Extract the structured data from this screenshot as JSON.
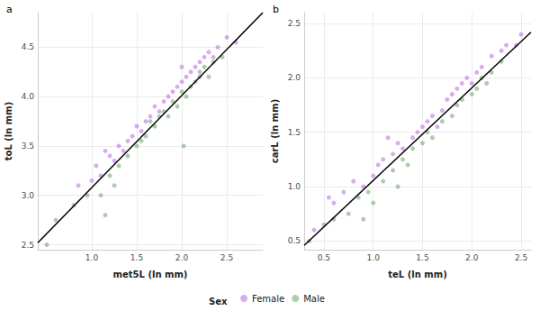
{
  "chart_data": [
    {
      "type": "scatter",
      "title": "a",
      "x_label": "met5L (ln mm)",
      "y_label": "toL (ln mm)",
      "xlim": [
        0.4,
        2.9
      ],
      "ylim": [
        2.45,
        4.85
      ],
      "xticks": [
        {
          "value": 1,
          "label": "1.0"
        },
        1.5,
        {
          "value": 2,
          "label": "2.0"
        },
        2.5
      ],
      "yticks": [
        2.5,
        {
          "value": 3,
          "label": "3.0"
        },
        3.5,
        {
          "value": 4,
          "label": "4.0"
        },
        4.5
      ],
      "grid": true,
      "legend": "bottom",
      "legend_title": "Sex",
      "series": [
        {
          "name": "Female",
          "color": "#b45ae0",
          "marker": "circle",
          "values": [
            [
              1.0,
              3.15
            ],
            [
              1.05,
              3.3
            ],
            [
              1.1,
              3.2
            ],
            [
              1.2,
              3.4
            ],
            [
              1.25,
              3.35
            ],
            [
              1.3,
              3.5
            ],
            [
              1.35,
              3.45
            ],
            [
              1.4,
              3.55
            ],
            [
              1.45,
              3.6
            ],
            [
              1.5,
              3.7
            ],
            [
              1.55,
              3.65
            ],
            [
              1.6,
              3.75
            ],
            [
              1.65,
              3.8
            ],
            [
              1.7,
              3.9
            ],
            [
              1.75,
              3.85
            ],
            [
              1.8,
              3.95
            ],
            [
              1.85,
              4.0
            ],
            [
              1.9,
              4.05
            ],
            [
              1.95,
              4.1
            ],
            [
              2.0,
              4.15
            ],
            [
              2.05,
              4.2
            ],
            [
              2.1,
              4.25
            ],
            [
              2.15,
              4.3
            ],
            [
              2.2,
              4.35
            ],
            [
              2.25,
              4.4
            ],
            [
              2.3,
              4.45
            ],
            [
              2.35,
              4.4
            ],
            [
              2.4,
              4.5
            ],
            [
              2.5,
              4.6
            ],
            [
              2.6,
              4.55
            ],
            [
              0.85,
              3.1
            ],
            [
              1.15,
              3.45
            ],
            [
              2.0,
              4.3
            ],
            [
              2.2,
              4.2
            ]
          ]
        },
        {
          "name": "Male",
          "color": "#5a9e5a",
          "marker": "circle",
          "values": [
            [
              0.5,
              2.5
            ],
            [
              0.6,
              2.75
            ],
            [
              0.8,
              2.9
            ],
            [
              0.95,
              3.0
            ],
            [
              1.1,
              3.0
            ],
            [
              1.15,
              2.8
            ],
            [
              1.2,
              3.2
            ],
            [
              1.3,
              3.3
            ],
            [
              1.4,
              3.4
            ],
            [
              1.5,
              3.5
            ],
            [
              1.55,
              3.55
            ],
            [
              1.6,
              3.6
            ],
            [
              1.7,
              3.7
            ],
            [
              1.75,
              3.8
            ],
            [
              1.8,
              3.85
            ],
            [
              1.9,
              3.95
            ],
            [
              1.95,
              3.9
            ],
            [
              2.0,
              4.05
            ],
            [
              2.02,
              3.5
            ],
            [
              2.05,
              4.0
            ],
            [
              2.1,
              4.1
            ],
            [
              2.15,
              4.15
            ],
            [
              2.2,
              4.25
            ],
            [
              2.25,
              4.3
            ],
            [
              2.3,
              4.2
            ],
            [
              2.35,
              4.35
            ],
            [
              2.45,
              4.4
            ],
            [
              1.65,
              3.75
            ],
            [
              1.85,
              3.8
            ],
            [
              1.25,
              3.1
            ]
          ]
        },
        {
          "type": "line",
          "color": "#000000",
          "x": [
            0.4,
            2.9
          ],
          "values": [
            2.52,
            4.85
          ]
        }
      ]
    },
    {
      "type": "scatter",
      "title": "b",
      "x_label": "teL (ln mm)",
      "y_label": "carL (ln mm)",
      "xlim": [
        0.3,
        2.6
      ],
      "ylim": [
        0.42,
        2.6
      ],
      "xticks": [
        0.5,
        {
          "value": 1,
          "label": "1.0"
        },
        1.5,
        {
          "value": 2,
          "label": "2.0"
        },
        2.5
      ],
      "yticks": [
        0.5,
        {
          "value": 1,
          "label": "1.0"
        },
        1.5,
        {
          "value": 2,
          "label": "2.0"
        },
        2.5
      ],
      "grid": true,
      "series": [
        {
          "name": "Female",
          "color": "#b45ae0",
          "marker": "circle",
          "values": [
            [
              0.4,
              0.6
            ],
            [
              0.55,
              0.9
            ],
            [
              0.6,
              0.85
            ],
            [
              0.7,
              0.95
            ],
            [
              0.8,
              1.05
            ],
            [
              0.9,
              1.0
            ],
            [
              1.0,
              1.1
            ],
            [
              1.05,
              1.2
            ],
            [
              1.1,
              1.25
            ],
            [
              1.2,
              1.3
            ],
            [
              1.25,
              1.4
            ],
            [
              1.3,
              1.35
            ],
            [
              1.4,
              1.45
            ],
            [
              1.45,
              1.5
            ],
            [
              1.5,
              1.55
            ],
            [
              1.55,
              1.6
            ],
            [
              1.6,
              1.65
            ],
            [
              1.7,
              1.7
            ],
            [
              1.75,
              1.8
            ],
            [
              1.8,
              1.85
            ],
            [
              1.85,
              1.9
            ],
            [
              1.9,
              1.95
            ],
            [
              1.95,
              2.0
            ],
            [
              2.0,
              1.95
            ],
            [
              2.05,
              2.05
            ],
            [
              2.1,
              2.1
            ],
            [
              2.2,
              2.2
            ],
            [
              2.3,
              2.25
            ],
            [
              2.35,
              2.3
            ],
            [
              2.45,
              2.3
            ],
            [
              2.5,
              2.4
            ],
            [
              1.15,
              1.45
            ],
            [
              1.65,
              1.55
            ]
          ]
        },
        {
          "name": "Male",
          "color": "#5a9e5a",
          "marker": "circle",
          "values": [
            [
              0.35,
              0.5
            ],
            [
              0.5,
              0.65
            ],
            [
              0.6,
              0.7
            ],
            [
              0.75,
              0.75
            ],
            [
              0.85,
              0.9
            ],
            [
              0.95,
              0.95
            ],
            [
              1.0,
              0.85
            ],
            [
              1.1,
              1.05
            ],
            [
              1.2,
              1.15
            ],
            [
              1.3,
              1.25
            ],
            [
              1.35,
              1.2
            ],
            [
              1.4,
              1.35
            ],
            [
              1.5,
              1.4
            ],
            [
              1.55,
              1.5
            ],
            [
              1.6,
              1.45
            ],
            [
              1.7,
              1.6
            ],
            [
              1.8,
              1.65
            ],
            [
              1.85,
              1.75
            ],
            [
              1.9,
              1.8
            ],
            [
              2.0,
              1.85
            ],
            [
              2.05,
              1.9
            ],
            [
              2.1,
              2.0
            ],
            [
              2.15,
              1.95
            ],
            [
              2.2,
              2.05
            ],
            [
              2.3,
              2.15
            ],
            [
              1.25,
              1.0
            ],
            [
              0.9,
              0.7
            ]
          ]
        },
        {
          "type": "line",
          "color": "#000000",
          "x": [
            0.3,
            2.6
          ],
          "values": [
            0.46,
            2.42
          ]
        }
      ]
    }
  ]
}
